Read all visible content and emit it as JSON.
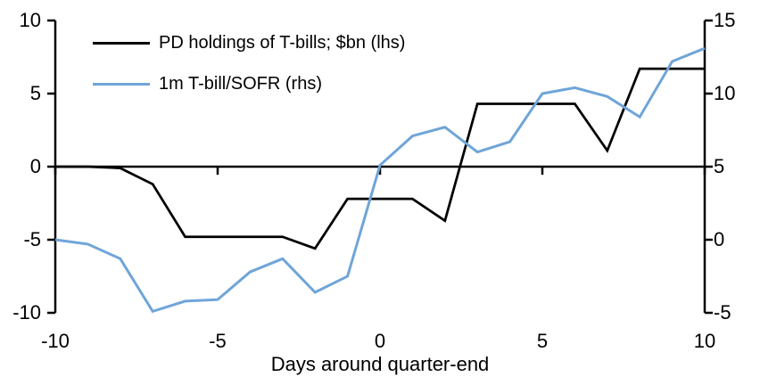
{
  "figure": {
    "background": "#ffffff",
    "axis_color": "#000000",
    "x_axis_title": "Days around quarter-end"
  },
  "legend": {
    "items": [
      {
        "label": "PD holdings of T-bills; $bn (lhs)",
        "color": "#000000"
      },
      {
        "label": "1m T-bill/SOFR (rhs)",
        "color": "#6FA5D8"
      }
    ]
  },
  "chart_data": {
    "type": "line",
    "title": "",
    "xlabel": "Days around quarter-end",
    "ylabel_left": "",
    "ylabel_right": "",
    "grid": false,
    "zero_line": true,
    "legend_position": "top-left-inside",
    "x": [
      -10,
      -9,
      -8,
      -7,
      -6,
      -5,
      -4,
      -3,
      -2,
      -1,
      0,
      1,
      2,
      3,
      4,
      5,
      6,
      7,
      8,
      9,
      10
    ],
    "series": [
      {
        "name": "PD holdings of T-bills; $bn (lhs)",
        "axis": "left",
        "color": "#000000",
        "stroke_width": 2.75,
        "values": [
          0.0,
          0.0,
          -0.1,
          -1.2,
          -4.8,
          -4.8,
          -4.8,
          -4.8,
          -5.6,
          -2.2,
          -2.2,
          -2.2,
          -3.7,
          4.3,
          4.3,
          4.3,
          4.3,
          1.1,
          6.7,
          6.7,
          6.7
        ]
      },
      {
        "name": "1m T-bill/SOFR (rhs)",
        "axis": "right",
        "color": "#6FA5D8",
        "stroke_width": 3,
        "values": [
          0.0,
          -0.3,
          -1.3,
          -4.9,
          -4.2,
          -4.1,
          -2.2,
          -1.3,
          -3.6,
          -2.5,
          5.1,
          7.1,
          7.7,
          6.0,
          6.7,
          10.0,
          10.4,
          9.8,
          8.4,
          12.2,
          13.1
        ]
      }
    ],
    "left_axis": {
      "range": [
        -10,
        10
      ],
      "ticks": [
        10,
        5,
        0,
        -5,
        -10
      ]
    },
    "right_axis": {
      "range": [
        -5,
        15
      ],
      "ticks": [
        15,
        10,
        5,
        0,
        -5
      ]
    },
    "x_axis": {
      "range": [
        -10,
        10
      ],
      "ticks": [
        -10,
        -5,
        0,
        5,
        10
      ]
    }
  }
}
